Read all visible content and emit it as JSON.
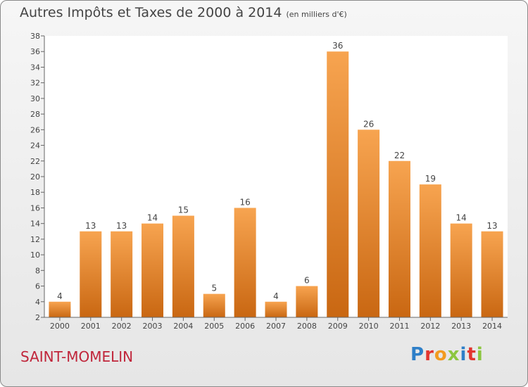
{
  "header": {
    "title": "Autres Impôts et Taxes de 2000 à 2014",
    "unit": "(en milliers d'€)"
  },
  "footer": {
    "city": "SAINT-MOMELIN",
    "logo": "Proxiti"
  },
  "colors": {
    "bar_light": "#f7a450",
    "bar_dark": "#c96712",
    "city": "#c0253a"
  },
  "chart_data": {
    "type": "bar",
    "title": "Autres Impôts et Taxes de 2000 à 2014",
    "subtitle": "(en milliers d'€)",
    "categories": [
      "2000",
      "2001",
      "2002",
      "2003",
      "2004",
      "2005",
      "2006",
      "2007",
      "2008",
      "2009",
      "2010",
      "2011",
      "2012",
      "2013",
      "2014"
    ],
    "values": [
      4,
      13,
      13,
      14,
      15,
      5,
      16,
      4,
      6,
      36,
      26,
      22,
      19,
      14,
      13
    ],
    "ylim": [
      2,
      38
    ],
    "yticks": [
      2,
      4,
      6,
      8,
      10,
      12,
      14,
      16,
      18,
      20,
      22,
      24,
      26,
      28,
      30,
      32,
      34,
      36,
      38
    ],
    "grid": false,
    "data_labels": true
  }
}
